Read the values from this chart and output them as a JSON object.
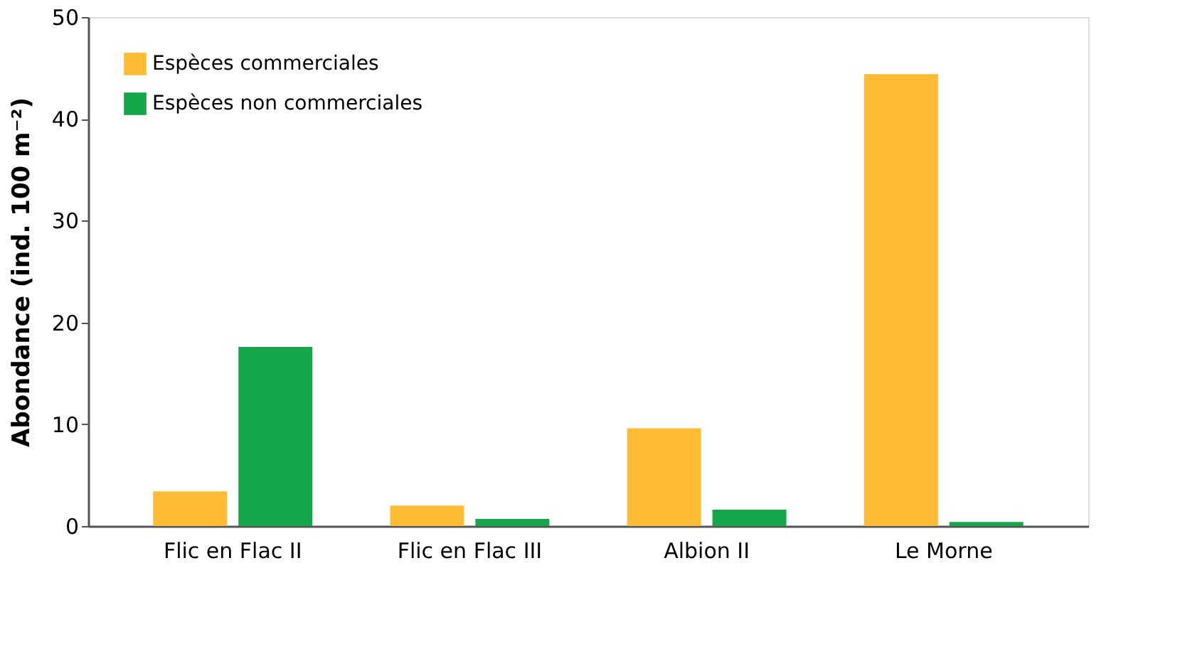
{
  "chart_data": {
    "type": "bar",
    "ylabel": "Abondance (ind. 100 m⁻²)",
    "categories": [
      "Flic en Flac II",
      "Flic en Flac III",
      "Albion II",
      "Le Morne"
    ],
    "series": [
      {
        "name": "Espèces commerciales",
        "color": "#febb36",
        "values": [
          3.4,
          2.0,
          9.6,
          44.4
        ]
      },
      {
        "name": "Espèces non commerciales",
        "color": "#16a64a",
        "values": [
          17.6,
          0.7,
          1.6,
          0.4
        ]
      }
    ],
    "ylim": [
      0,
      50
    ],
    "yticks": [
      0,
      10,
      20,
      30,
      40,
      50
    ],
    "grid": false,
    "legend": "top left"
  }
}
